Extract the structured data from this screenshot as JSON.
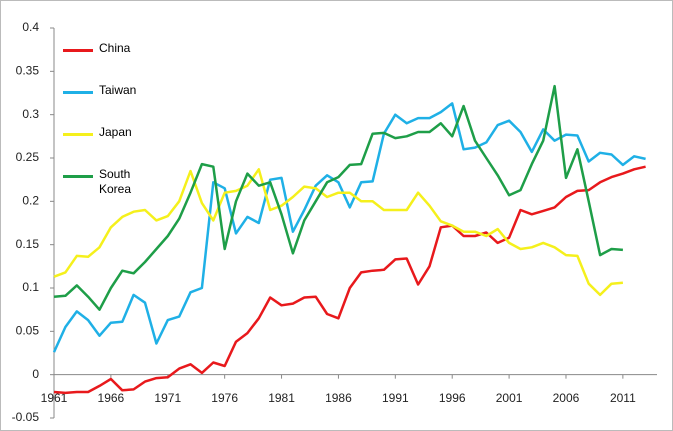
{
  "chart_data": {
    "type": "line",
    "x": [
      1961,
      1962,
      1963,
      1964,
      1965,
      1966,
      1967,
      1968,
      1969,
      1970,
      1971,
      1972,
      1973,
      1974,
      1975,
      1976,
      1977,
      1978,
      1979,
      1980,
      1981,
      1982,
      1983,
      1984,
      1985,
      1986,
      1987,
      1988,
      1989,
      1990,
      1991,
      1992,
      1993,
      1994,
      1995,
      1996,
      1997,
      1998,
      1999,
      2000,
      2001,
      2002,
      2003,
      2004,
      2005,
      2006,
      2007,
      2008,
      2009,
      2010,
      2011,
      2012,
      2013
    ],
    "series": [
      {
        "name": "China",
        "color": "#e8191c",
        "values": [
          -0.02,
          -0.021,
          -0.02,
          -0.02,
          -0.013,
          -0.005,
          -0.018,
          -0.017,
          -0.008,
          -0.004,
          -0.003,
          0.007,
          0.012,
          0.002,
          0.014,
          0.01,
          0.038,
          0.048,
          0.065,
          0.089,
          0.08,
          0.082,
          0.089,
          0.09,
          0.07,
          0.065,
          0.1,
          0.118,
          0.12,
          0.121,
          0.133,
          0.134,
          0.104,
          0.125,
          0.17,
          0.172,
          0.16,
          0.16,
          0.164,
          0.152,
          0.158,
          0.19,
          0.185,
          0.189,
          0.193,
          0.205,
          0.212,
          0.213,
          0.222,
          0.228,
          0.232,
          0.237,
          0.24
        ]
      },
      {
        "name": "Taiwan",
        "color": "#1fb0e6",
        "values": [
          0.026,
          0.055,
          0.073,
          0.063,
          0.045,
          0.06,
          0.061,
          0.092,
          0.083,
          0.036,
          0.063,
          0.067,
          0.095,
          0.1,
          0.222,
          0.215,
          0.163,
          0.182,
          0.175,
          0.225,
          0.227,
          0.165,
          0.19,
          0.218,
          0.23,
          0.222,
          0.193,
          0.222,
          0.223,
          0.278,
          0.3,
          0.29,
          0.296,
          0.296,
          0.303,
          0.313,
          0.26,
          0.262,
          0.268,
          0.288,
          0.293,
          0.28,
          0.257,
          0.283,
          0.27,
          0.277,
          0.276,
          0.246,
          0.256,
          0.254,
          0.242,
          0.252,
          0.249
        ]
      },
      {
        "name": "Japan",
        "color": "#f5f01c",
        "values": [
          0.113,
          0.118,
          0.137,
          0.136,
          0.147,
          0.17,
          0.182,
          0.188,
          0.19,
          0.178,
          0.183,
          0.2,
          0.235,
          0.198,
          0.178,
          0.21,
          0.212,
          0.218,
          0.237,
          0.19,
          0.195,
          0.205,
          0.217,
          0.215,
          0.205,
          0.21,
          0.21,
          0.2,
          0.2,
          0.19,
          0.19,
          0.19,
          0.21,
          0.195,
          0.177,
          0.172,
          0.165,
          0.165,
          0.16,
          0.168,
          0.152,
          0.145,
          0.147,
          0.152,
          0.147,
          0.138,
          0.137,
          0.105,
          0.092,
          0.105,
          0.106,
          null,
          null
        ]
      },
      {
        "name": "South Korea",
        "color": "#1e9e48",
        "values": [
          0.09,
          0.091,
          0.103,
          0.09,
          0.075,
          0.1,
          0.12,
          0.117,
          0.13,
          0.145,
          0.16,
          0.18,
          0.21,
          0.243,
          0.24,
          0.145,
          0.2,
          0.232,
          0.218,
          0.222,
          0.185,
          0.14,
          0.178,
          0.2,
          0.222,
          0.228,
          0.242,
          0.243,
          0.278,
          0.279,
          0.273,
          0.275,
          0.28,
          0.28,
          0.29,
          0.275,
          0.31,
          0.27,
          0.25,
          0.23,
          0.207,
          0.213,
          0.243,
          0.27,
          0.333,
          0.227,
          0.26,
          0.2,
          0.138,
          0.145,
          0.144,
          null,
          null
        ]
      }
    ],
    "xlim": [
      1961,
      2014
    ],
    "xticks": [
      1961,
      1966,
      1971,
      1976,
      1981,
      1986,
      1991,
      1996,
      2001,
      2006,
      2011
    ],
    "ylim": [
      -0.05,
      0.4
    ],
    "yticks": [
      -0.05,
      0,
      0.05,
      0.1,
      0.15,
      0.2,
      0.25,
      0.3,
      0.35,
      0.4
    ],
    "legend": "top-left"
  }
}
